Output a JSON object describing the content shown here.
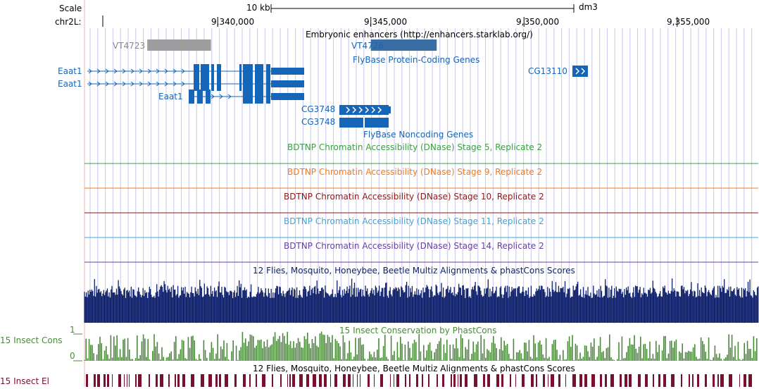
{
  "ruler": {
    "scale_label": "Scale",
    "scale_value": "10 kb",
    "assembly": "dm3",
    "chrom_label": "chr2L:",
    "ticks": [
      {
        "label": "9,340,000",
        "pos": 9340000
      },
      {
        "label": "9,345,000",
        "pos": 9345000
      },
      {
        "label": "9,350,000",
        "pos": 9350000
      },
      {
        "label": "9,355,000",
        "pos": 9355000
      }
    ],
    "view_start": 9335650,
    "view_end": 9357650
  },
  "tracks": {
    "enhancers": {
      "title": "Embryonic enhancers (http://enhancers.starklab.org/)",
      "items": [
        {
          "name": "VT4723",
          "color": "#9e9e9e",
          "start": 9337700,
          "end": 9339780
        },
        {
          "name": "VT4726",
          "color": "#3a6ea5",
          "start": 9345000,
          "end": 9347150
        }
      ]
    },
    "flybase_coding": {
      "title": "FlyBase Protein-Coding Genes",
      "genes": [
        {
          "name": "Eaat1"
        },
        {
          "name": "Eaat1"
        },
        {
          "name": "Eaat1"
        },
        {
          "name": "CG13110"
        },
        {
          "name": "CG3748"
        },
        {
          "name": "CG3748"
        }
      ]
    },
    "flybase_noncoding": {
      "title": "FlyBase Noncoding Genes"
    },
    "dnase": [
      {
        "title": "BDTNP Chromatin Accessibility (DNase) Stage 5, Replicate 2",
        "color": "#3aa040"
      },
      {
        "title": "BDTNP Chromatin Accessibility (DNase) Stage 9, Replicate 2",
        "color": "#f07c1e"
      },
      {
        "title": "BDTNP Chromatin Accessibility (DNase) Stage 10, Replicate 2",
        "color": "#8b1a1a"
      },
      {
        "title": "BDTNP Chromatin Accessibility (DNase) Stage 11, Replicate 2",
        "color": "#3fa7d6"
      },
      {
        "title": "BDTNP Chromatin Accessibility (DNase) Stage 14, Replicate 2",
        "color": "#6a3fa0"
      }
    ],
    "multiz": {
      "title": "12 Flies, Mosquito, Honeybee, Beetle Multiz Alignments & phastCons Scores",
      "color": "#0d1f6b"
    },
    "phastcons": {
      "title": "15 Insect Conservation by PhastCons",
      "side_label": "15 Insect Cons",
      "axis_max": "1",
      "axis_min": "0",
      "color": "#4a8a3a"
    },
    "elements": {
      "title": "12 Flies, Mosquito, Honeybee, Beetle Multiz Alignments & phastCons Scores",
      "side_label": "15 Insect El",
      "color": "#7a0f2e"
    }
  },
  "colors": {
    "gene_blue": "#1565b8",
    "grid_line": "#c8c8f0",
    "left_edge": "#f5b0b0"
  }
}
